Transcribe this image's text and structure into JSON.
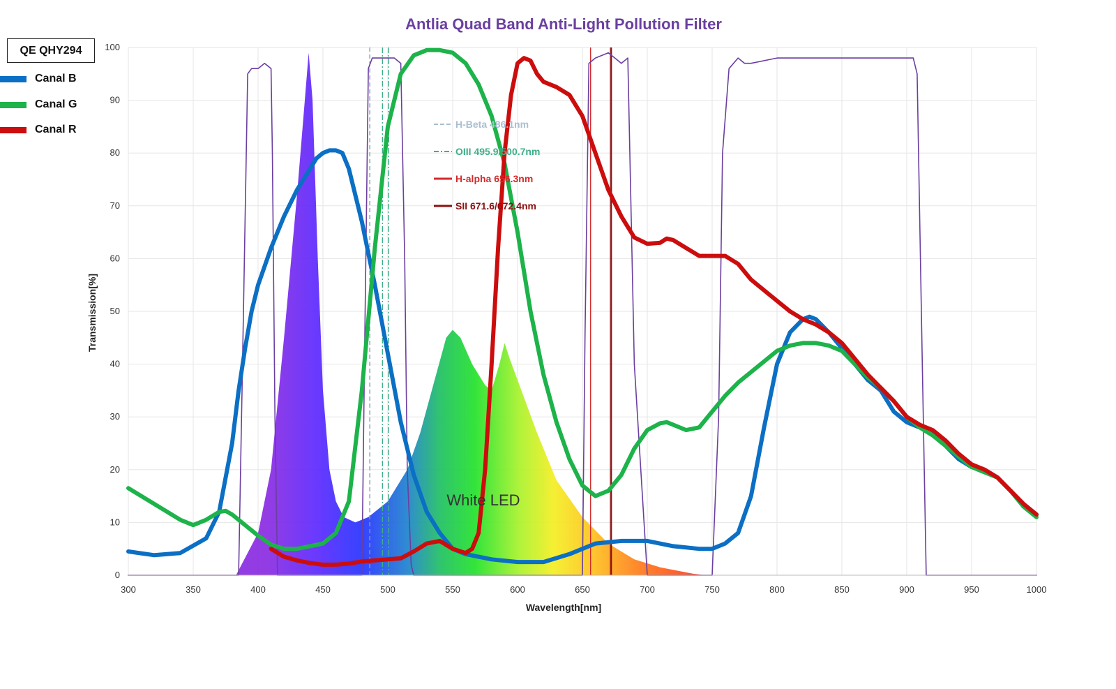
{
  "legend": {
    "title": "QE QHY294",
    "items": [
      {
        "label": "Canal B",
        "color": "#0b6fc4"
      },
      {
        "label": "Canal G",
        "color": "#1db34a"
      },
      {
        "label": "Canal R",
        "color": "#cc0d0d"
      }
    ]
  },
  "chart_data": {
    "type": "line",
    "title": "Antlia Quad Band Anti-Light Pollution Filter",
    "xlabel": "Wavelength[nm]",
    "ylabel": "Transmission[%]",
    "xlim": [
      300,
      1000
    ],
    "ylim": [
      0,
      100
    ],
    "x_ticks": [
      300,
      350,
      400,
      450,
      500,
      550,
      600,
      650,
      700,
      750,
      800,
      850,
      900,
      950,
      1000
    ],
    "y_ticks": [
      0,
      10,
      20,
      30,
      40,
      50,
      60,
      70,
      80,
      90,
      100
    ],
    "grid": true,
    "annotation": "White LED",
    "line_legend": [
      {
        "label": "H-Beta 486.1nm",
        "color": "#a9bfd2",
        "style": "dash"
      },
      {
        "label": "OIII 495.9/500.7nm",
        "color": "#3fae8a",
        "style": "dashdot"
      },
      {
        "label": "H-alpha 656.3nm",
        "color": "#d42a2a",
        "style": "solid"
      },
      {
        "label": "SII 671.6/672.4nm",
        "color": "#8c1010",
        "style": "solid"
      }
    ],
    "emission_lines": [
      {
        "name": "H-Beta",
        "wavelengths": [
          486.1
        ],
        "color": "#7f9fb8"
      },
      {
        "name": "OIII",
        "wavelengths": [
          495.9,
          500.7
        ],
        "color": "#3fae8a"
      },
      {
        "name": "H-alpha",
        "wavelengths": [
          656.3
        ],
        "color": "#d42a2a"
      },
      {
        "name": "SII",
        "wavelengths": [
          671.6,
          672.4
        ],
        "color": "#8c1010"
      }
    ],
    "series": [
      {
        "name": "Antlia Quad Band",
        "color": "#6a3fa0",
        "x": [
          300,
          385,
          388,
          392,
          395,
          400,
          405,
          410,
          411,
          413,
          415,
          480,
          482,
          485,
          488,
          495,
          505,
          510,
          513,
          515,
          518,
          520,
          580,
          650,
          652,
          655,
          660,
          670,
          675,
          680,
          685,
          690,
          700,
          750,
          755,
          758,
          763,
          770,
          775,
          780,
          800,
          850,
          900,
          905,
          908,
          912,
          915,
          1000
        ],
        "values": [
          0,
          0,
          40,
          95,
          96,
          96,
          97,
          96,
          80,
          30,
          0,
          0,
          40,
          96,
          98,
          98,
          98,
          97,
          60,
          20,
          2,
          0,
          0,
          0,
          45,
          97,
          98,
          99,
          98,
          97,
          98,
          40,
          0,
          0,
          30,
          80,
          96,
          98,
          97,
          97,
          98,
          98,
          98,
          98,
          95,
          40,
          0,
          0
        ]
      },
      {
        "name": "Canal B",
        "color": "#0b6fc4",
        "x": [
          300,
          320,
          340,
          360,
          370,
          380,
          385,
          390,
          395,
          400,
          410,
          420,
          430,
          440,
          445,
          450,
          455,
          460,
          465,
          470,
          480,
          490,
          500,
          510,
          520,
          530,
          540,
          550,
          560,
          580,
          600,
          620,
          640,
          660,
          680,
          700,
          720,
          740,
          750,
          760,
          770,
          780,
          790,
          800,
          810,
          820,
          825,
          830,
          840,
          850,
          860,
          870,
          880,
          890,
          900,
          910,
          920,
          930,
          940,
          950,
          960,
          970,
          980,
          990,
          1000
        ],
        "values": [
          4.5,
          3.8,
          4.2,
          7,
          12,
          25,
          35,
          43,
          50,
          55,
          62,
          68,
          73,
          77,
          79,
          80,
          80.5,
          80.5,
          80,
          77,
          67,
          55,
          42,
          29,
          19,
          12,
          8,
          5,
          4,
          3,
          2.5,
          2.5,
          4,
          6,
          6.5,
          6.5,
          5.5,
          5,
          5,
          6,
          8,
          15,
          28,
          40,
          46,
          48.5,
          49,
          48.5,
          46,
          43,
          40,
          37,
          35,
          31,
          29,
          28,
          27,
          24.5,
          22,
          20.5,
          20,
          18.5,
          16,
          13.5,
          11.5
        ]
      },
      {
        "name": "Canal G",
        "color": "#1db34a",
        "x": [
          300,
          320,
          340,
          350,
          360,
          370,
          375,
          380,
          390,
          400,
          410,
          420,
          430,
          440,
          450,
          460,
          470,
          480,
          490,
          500,
          510,
          520,
          530,
          540,
          550,
          560,
          570,
          580,
          590,
          600,
          610,
          620,
          630,
          640,
          650,
          660,
          670,
          680,
          690,
          700,
          710,
          715,
          720,
          730,
          740,
          750,
          760,
          770,
          780,
          790,
          800,
          810,
          820,
          830,
          840,
          850,
          860,
          870,
          880,
          890,
          900,
          910,
          920,
          930,
          940,
          950,
          960,
          970,
          980,
          990,
          1000
        ],
        "values": [
          16.5,
          13.5,
          10.5,
          9.5,
          10.5,
          12,
          12.2,
          11.5,
          9.5,
          7.5,
          5.8,
          5,
          5,
          5.5,
          6,
          8,
          14,
          35,
          62,
          85,
          95,
          98.5,
          99.5,
          99.5,
          99,
          97,
          93,
          87,
          78,
          65,
          50,
          38,
          29,
          22,
          17,
          15,
          16,
          19,
          24,
          27.5,
          28.8,
          29,
          28.5,
          27.5,
          28,
          31,
          34,
          36.5,
          38.5,
          40.5,
          42.5,
          43.5,
          44,
          44,
          43.5,
          42.5,
          40,
          37.5,
          35.5,
          33,
          30,
          28,
          26.5,
          24.5,
          22.5,
          20.5,
          19.5,
          18.5,
          16,
          13,
          11
        ]
      },
      {
        "name": "Canal R",
        "color": "#cc0d0d",
        "x": [
          410,
          420,
          430,
          440,
          450,
          460,
          470,
          480,
          490,
          500,
          510,
          520,
          530,
          540,
          550,
          560,
          565,
          570,
          575,
          580,
          585,
          590,
          595,
          600,
          605,
          610,
          615,
          620,
          630,
          640,
          650,
          660,
          670,
          680,
          690,
          700,
          710,
          715,
          720,
          730,
          740,
          750,
          760,
          770,
          780,
          790,
          800,
          810,
          820,
          830,
          840,
          850,
          860,
          870,
          880,
          890,
          900,
          910,
          920,
          930,
          940,
          950,
          960,
          970,
          980,
          990,
          1000
        ],
        "values": [
          5,
          3.5,
          2.8,
          2.3,
          2,
          2,
          2.2,
          2.6,
          2.8,
          3,
          3.2,
          4.5,
          6,
          6.5,
          5,
          4.2,
          5,
          8,
          20,
          40,
          62,
          80,
          91,
          97,
          98,
          97.5,
          95,
          93.5,
          92.5,
          91,
          87,
          80,
          73,
          68,
          64,
          62.8,
          63,
          63.8,
          63.5,
          62,
          60.5,
          60.5,
          60.5,
          59,
          56,
          54,
          52,
          50,
          48.5,
          47.5,
          46,
          44,
          41,
          38,
          35.5,
          33,
          30,
          28.5,
          27.5,
          25.5,
          23,
          21,
          20,
          18.5,
          16,
          13.5,
          11.5
        ]
      }
    ]
  }
}
